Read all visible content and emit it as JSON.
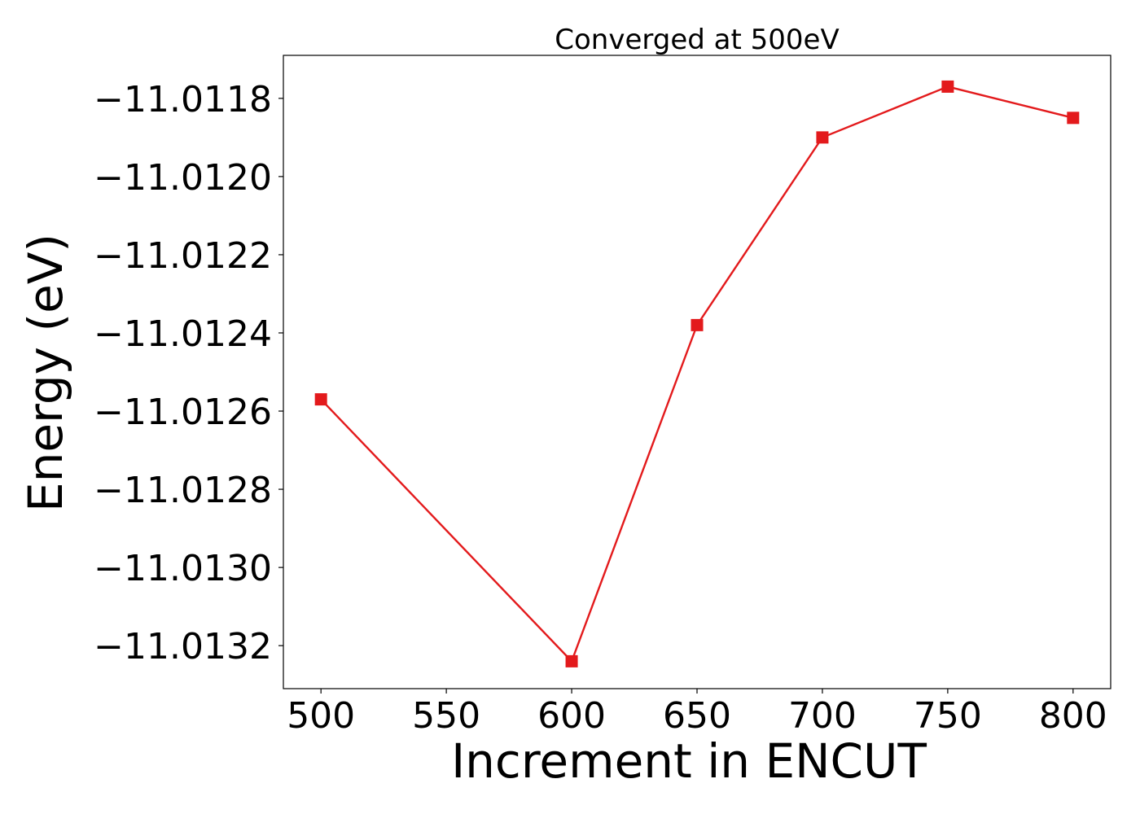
{
  "chart_data": {
    "type": "line",
    "title": "Converged at 500eV",
    "xlabel": "Increment in ENCUT",
    "ylabel": "Energy (eV)",
    "x": [
      500,
      600,
      650,
      700,
      750,
      800
    ],
    "series": [
      {
        "values": [
          -11.01257,
          -11.01324,
          -11.01238,
          -11.0119,
          -11.01177,
          -11.01185
        ],
        "color": "#e31a1c",
        "marker": "square"
      }
    ],
    "xlim": [
      485,
      815
    ],
    "ylim": [
      -11.01331,
      -11.01169
    ],
    "xticks": [
      500,
      550,
      600,
      650,
      700,
      750,
      800
    ],
    "xtick_labels": [
      "500",
      "550",
      "600",
      "650",
      "700",
      "750",
      "800"
    ],
    "yticks": [
      -11.0132,
      -11.013,
      -11.0128,
      -11.0126,
      -11.0124,
      -11.0122,
      -11.012,
      -11.0118
    ],
    "ytick_labels": [
      "−11.0132",
      "−11.0130",
      "−11.0128",
      "−11.0126",
      "−11.0124",
      "−11.0122",
      "−11.0120",
      "−11.0118"
    ],
    "grid": false,
    "legend": "none"
  }
}
